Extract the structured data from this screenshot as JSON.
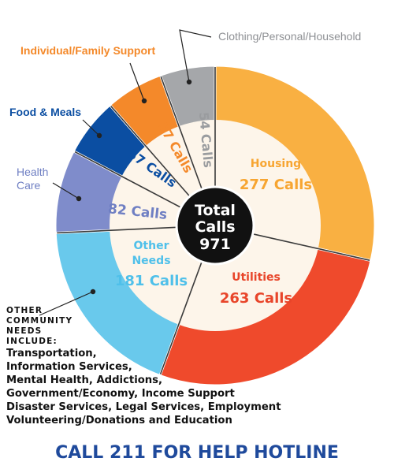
{
  "chart_data": {
    "type": "pie",
    "total_label_line1": "Total",
    "total_label_line2": "Calls",
    "total_value": "971",
    "slices": [
      {
        "name": "Housing",
        "value": 277,
        "value_label": "277 Calls",
        "color": "#f9b042",
        "inner_text_color": "#f7a531"
      },
      {
        "name": "Utilities",
        "value": 263,
        "value_label": "263 Calls",
        "color": "#ef4a2c",
        "inner_text_color": "#e8452a"
      },
      {
        "name": "Other Needs",
        "value": 181,
        "value_label": "181 Calls",
        "color": "#69c9ec",
        "inner_text_color": "#4fc0ea"
      },
      {
        "name": "Health Care",
        "value": 82,
        "value_label": "82 Calls",
        "color": "#7f8ccb",
        "inner_text_color": "#6f7fc3"
      },
      {
        "name": "Food & Meals",
        "value": 57,
        "value_label": "57 Calls",
        "color": "#0b4ea2",
        "inner_text_color": "#0b4ea2"
      },
      {
        "name": "Individual/Family Support",
        "value": 57,
        "value_label": "57 Calls",
        "color": "#f4892a",
        "inner_text_color": "#f4892a"
      },
      {
        "name": "Clothing/Personal/Household",
        "value": 54,
        "value_label": "54 Calls",
        "color": "#a5a7aa",
        "inner_text_color": "#9a9c9f"
      }
    ]
  },
  "labels": {
    "housing": "Housing",
    "utilities": "Utilities",
    "other_needs_1": "Other",
    "other_needs_2": "Needs",
    "health_care_1": "Health",
    "health_care_2": "Care",
    "food_meals": "Food & Meals",
    "individual_family": "Individual/Family Support",
    "clothing": "Clothing/Personal/Household"
  },
  "other_community": {
    "header": "Other Community Needs Include:",
    "lines": [
      "Transportation,",
      "Information Services,",
      "Mental Health, Addictions,",
      "Government/Economy, Income Support",
      "Disaster Services, Legal Services, Employment",
      "Volunteering/Donations and Education"
    ]
  },
  "hotline": "CALL 211 FOR HELP HOTLINE",
  "colors": {
    "ring_border": "#ffffff",
    "inner_fill": "#fdf5ea",
    "center_fill": "#111111",
    "divider": "#3a3a3a",
    "hotline": "#1f4a9c"
  }
}
